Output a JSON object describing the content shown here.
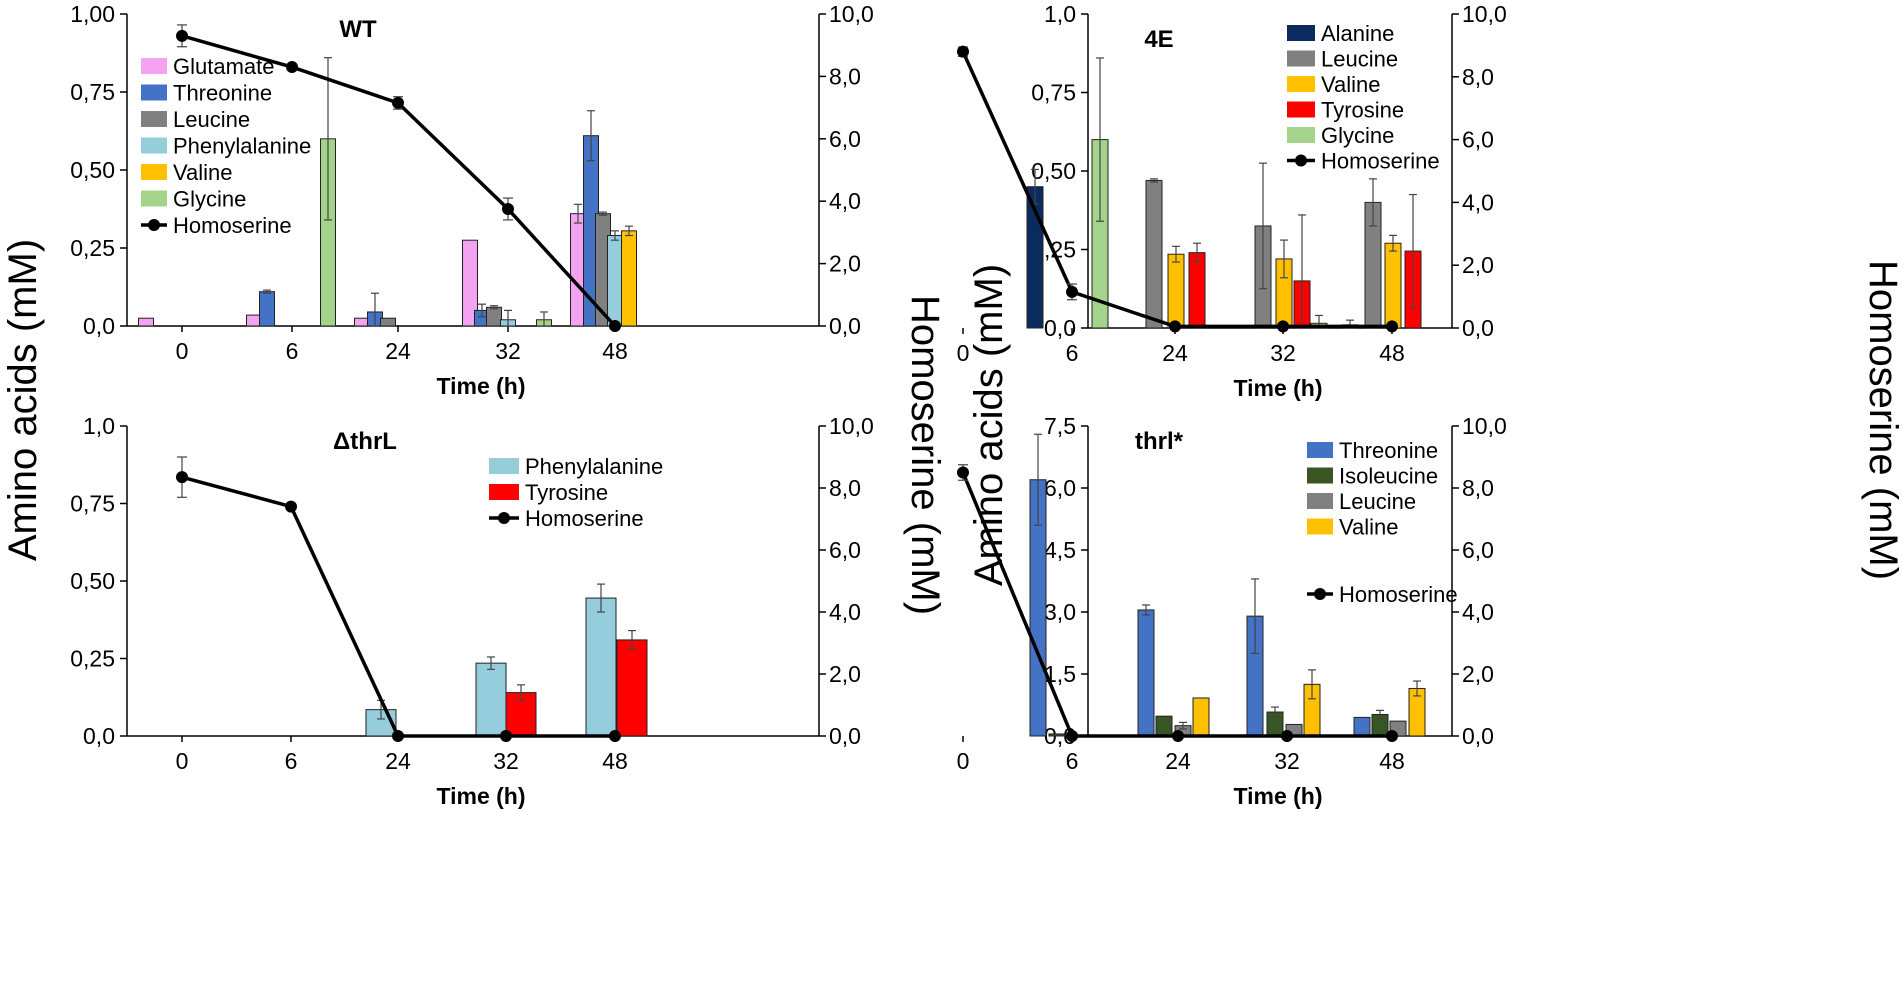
{
  "figure": {
    "y_label_left": "Amino acids (mM)",
    "y_label_right": "Homoserine  (mM)",
    "x_label": "Time (h)"
  },
  "colors": {
    "Glutamate": "#f3a3ef",
    "Threonine": "#4472c4",
    "Leucine": "#808080",
    "Phenylalanine": "#96cddc",
    "Valine": "#ffc000",
    "Glycine": "#a4d48c",
    "Alanine": "#0b2a5e",
    "Tyrosine": "#ff0000",
    "Isoleucine": "#375623",
    "Homoserine": "#000000"
  },
  "chart_data": [
    {
      "type": "bar",
      "title": "WT",
      "categories": [
        "0",
        "6",
        "24",
        "32",
        "48"
      ],
      "xlabel": "Time (h)",
      "ylabel": "Amino acids (mM)",
      "ylim": [
        0,
        1
      ],
      "yticks": [
        0,
        0.25,
        0.5,
        0.75,
        1
      ],
      "ytick_labels": [
        "0,0",
        "0,25",
        "0,50",
        "0,75",
        "1,00"
      ],
      "y2label": "Homoserine (mM)",
      "y2lim": [
        0,
        10
      ],
      "y2ticks": [
        0,
        2,
        4,
        6,
        8,
        10
      ],
      "y2tick_labels": [
        "0,0",
        "2,0",
        "4,0",
        "6,0",
        "8,0",
        "10,0"
      ],
      "series": [
        {
          "name": "Glutamate",
          "values": [
            0.025,
            0.035,
            0.025,
            0.275,
            0.36
          ],
          "errors": [
            0,
            0,
            0,
            0,
            0.03
          ]
        },
        {
          "name": "Threonine",
          "values": [
            0,
            0.11,
            0.045,
            0.05,
            0.61
          ],
          "errors": [
            0,
            0.005,
            0.06,
            0.02,
            0.08
          ]
        },
        {
          "name": "Leucine",
          "values": [
            0,
            0,
            0.025,
            0.06,
            0.36
          ],
          "errors": [
            0,
            0,
            0,
            0.005,
            0.005
          ]
        },
        {
          "name": "Phenylalanine",
          "values": [
            0,
            0,
            0,
            0.02,
            0.29
          ],
          "errors": [
            0,
            0,
            0,
            0.03,
            0.015
          ]
        },
        {
          "name": "Valine",
          "values": [
            0,
            0,
            0,
            0,
            0.305
          ],
          "errors": [
            0,
            0,
            0,
            0,
            0.015
          ]
        },
        {
          "name": "Glycine",
          "values": [
            0,
            0.6,
            0,
            0.02,
            0
          ],
          "errors": [
            0,
            0.26,
            0,
            0.025,
            0
          ]
        }
      ],
      "line": {
        "name": "Homoserine",
        "values": [
          9.3,
          8.3,
          7.15,
          3.75,
          0
        ],
        "errors": [
          0.35,
          0,
          0.2,
          0.35,
          0
        ]
      },
      "legend": [
        "Glutamate",
        "Threonine",
        "Leucine",
        "Phenylalanine",
        "Valine",
        "Glycine",
        "Homoserine"
      ],
      "legend_position": "top-left"
    },
    {
      "type": "bar",
      "title": "4E",
      "categories": [
        "0",
        "6",
        "24",
        "32",
        "48"
      ],
      "xlabel": "Time (h)",
      "ylabel": "Amino acids (mM)",
      "ylim": [
        0,
        1
      ],
      "yticks": [
        0,
        0.25,
        0.5,
        0.75,
        1
      ],
      "ytick_labels": [
        "0,0",
        "0,25",
        "0,50",
        "0,75",
        "1,0"
      ],
      "y2label": "Homoserine (mM)",
      "y2lim": [
        0,
        10
      ],
      "y2ticks": [
        0,
        2,
        4,
        6,
        8,
        10
      ],
      "y2tick_labels": [
        "0,0",
        "2,0",
        "4,0",
        "6,0",
        "8,0",
        "10,0"
      ],
      "series": [
        {
          "name": "Alanine",
          "values": [
            0,
            0.45,
            0,
            0,
            0
          ],
          "errors": [
            0,
            0.055,
            0,
            0,
            0
          ]
        },
        {
          "name": "Glycine",
          "values": [
            0,
            0.6,
            0,
            0.015,
            0.01
          ],
          "errors": [
            0,
            0.26,
            0,
            0.025,
            0.015
          ]
        },
        {
          "name": "Leucine",
          "values": [
            0,
            0,
            0.47,
            0.325,
            0.4
          ],
          "errors": [
            0,
            0,
            0.005,
            0.2,
            0.075
          ]
        },
        {
          "name": "Valine",
          "values": [
            0,
            0,
            0.235,
            0.22,
            0.27
          ],
          "errors": [
            0,
            0,
            0.025,
            0.06,
            0.025
          ]
        },
        {
          "name": "Tyrosine",
          "values": [
            0,
            0,
            0.24,
            0.15,
            0.245
          ],
          "errors": [
            0,
            0,
            0.03,
            0.21,
            0.18
          ]
        }
      ],
      "line": {
        "name": "Homoserine",
        "values": [
          8.8,
          1.15,
          0.05,
          0.05,
          0.05
        ],
        "errors": [
          0.15,
          0.25,
          0,
          0,
          0
        ]
      },
      "legend": [
        "Alanine",
        "Leucine",
        "Valine",
        "Tyrosine",
        "Glycine",
        "Homoserine"
      ],
      "legend_position": "top-right"
    },
    {
      "type": "bar",
      "title": "ΔthrL",
      "categories": [
        "0",
        "6",
        "24",
        "32",
        "48"
      ],
      "xlabel": "Time (h)",
      "ylabel": "Amino acids (mM)",
      "ylim": [
        0,
        1
      ],
      "yticks": [
        0,
        0.25,
        0.5,
        0.75,
        1
      ],
      "ytick_labels": [
        "0,0",
        "0,25",
        "0,50",
        "0,75",
        "1,0"
      ],
      "y2label": "Homoserine (mM)",
      "y2lim": [
        0,
        10
      ],
      "y2ticks": [
        0,
        2,
        4,
        6,
        8,
        10
      ],
      "y2tick_labels": [
        "0,0",
        "2,0",
        "4,0",
        "6,0",
        "8,0",
        "10,0"
      ],
      "series": [
        {
          "name": "Phenylalanine",
          "values": [
            0,
            0,
            0.085,
            0.235,
            0.445
          ],
          "errors": [
            0,
            0,
            0.03,
            0.02,
            0.045
          ]
        },
        {
          "name": "Tyrosine",
          "values": [
            0,
            0,
            0,
            0.14,
            0.31
          ],
          "errors": [
            0,
            0,
            0,
            0.025,
            0.03
          ]
        }
      ],
      "line": {
        "name": "Homoserine",
        "values": [
          8.35,
          7.4,
          0,
          0,
          0
        ],
        "errors": [
          0.65,
          0,
          0,
          0,
          0
        ]
      },
      "legend": [
        "Phenylalanine",
        "Tyrosine",
        "Homoserine"
      ],
      "legend_position": "top-right"
    },
    {
      "type": "bar",
      "title": "thrl*",
      "categories": [
        "0",
        "6",
        "24",
        "32",
        "48"
      ],
      "xlabel": "Time (h)",
      "ylabel": "Amino acids (mM)",
      "ylim": [
        0,
        7.5
      ],
      "yticks": [
        0,
        1.5,
        3,
        4.5,
        6,
        7.5
      ],
      "ytick_labels": [
        "0,0",
        "1,5",
        "3,0",
        "4,5",
        "6,0",
        "7,5"
      ],
      "y2label": "Homoserine (mM)",
      "y2lim": [
        0,
        10
      ],
      "y2ticks": [
        0,
        2,
        4,
        6,
        8,
        10
      ],
      "y2tick_labels": [
        "0,0",
        "2,0",
        "4,0",
        "6,0",
        "8,0",
        "10,0"
      ],
      "series": [
        {
          "name": "Threonine",
          "values": [
            0,
            6.2,
            3.05,
            2.9,
            0.45
          ],
          "errors": [
            0,
            1.1,
            0.12,
            0.9,
            0
          ]
        },
        {
          "name": "Isoleucine",
          "values": [
            0,
            0.05,
            0.48,
            0.58,
            0.52
          ],
          "errors": [
            0,
            0,
            0,
            0.12,
            0.1
          ]
        },
        {
          "name": "Leucine",
          "values": [
            0,
            0,
            0.25,
            0.28,
            0.36
          ],
          "errors": [
            0,
            0,
            0.08,
            0,
            0
          ]
        },
        {
          "name": "Valine",
          "values": [
            0,
            0,
            0.92,
            1.25,
            1.15
          ],
          "errors": [
            0,
            0,
            0,
            0.35,
            0.18
          ]
        }
      ],
      "line": {
        "name": "Homoserine",
        "values": [
          8.5,
          0,
          0,
          0,
          0
        ],
        "errors": [
          0.25,
          0,
          0,
          0,
          0
        ]
      },
      "legend": [
        "Threonine",
        "Isoleucine",
        "Leucine",
        "Valine",
        "Homoserine"
      ],
      "legend_position": "top-right"
    }
  ]
}
